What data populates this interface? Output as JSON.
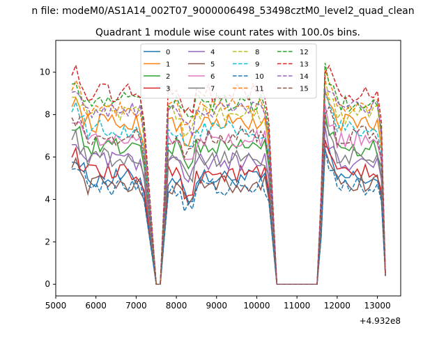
{
  "chart_data": {
    "type": "line",
    "suptitle": "n file: modeM0/AS1A14_002T07_9000006498_53498cztM0_level2_quad_clean",
    "title": "Quadrant 1 module wise count rates with 100.0s bins.",
    "xlabel": "",
    "ylabel": "",
    "x_offset_text": "+4.932e8",
    "xlim": [
      5000,
      13580
    ],
    "ylim": [
      -0.55,
      11.5
    ],
    "x_ticks": [
      5000,
      6000,
      7000,
      8000,
      9000,
      10000,
      11000,
      12000,
      13000
    ],
    "x_tick_labels": [
      "5000",
      "6000",
      "7000",
      "8000",
      "9000",
      "10000",
      "11000",
      "12000",
      "13000"
    ],
    "y_ticks": [
      0,
      2,
      4,
      6,
      8,
      10
    ],
    "y_tick_labels": [
      "0",
      "2",
      "4",
      "6",
      "8",
      "10"
    ],
    "grid": false,
    "legend": {
      "position": "top-center",
      "columns": 4
    },
    "time_profile": {
      "segments": [
        {
          "x_start": 5400,
          "x_end": 7200,
          "kind": "active"
        },
        {
          "x_start": 7200,
          "x_end": 7500,
          "kind": "fall"
        },
        {
          "x_start": 7500,
          "x_end": 7600,
          "kind": "zero"
        },
        {
          "x_start": 7600,
          "x_end": 7800,
          "kind": "rise"
        },
        {
          "x_start": 7800,
          "x_end": 10300,
          "kind": "active"
        },
        {
          "x_start": 10300,
          "x_end": 10500,
          "kind": "fall"
        },
        {
          "x_start": 10500,
          "x_end": 11500,
          "kind": "zero"
        },
        {
          "x_start": 11500,
          "x_end": 11700,
          "kind": "rise"
        },
        {
          "x_start": 11700,
          "x_end": 13100,
          "kind": "active"
        },
        {
          "x_start": 13100,
          "x_end": 13200,
          "kind": "fall"
        }
      ],
      "bin_seconds": 100
    },
    "series": [
      {
        "name": "0",
        "color": "#1f77b4",
        "dash": "solid",
        "level": 5.0
      },
      {
        "name": "1",
        "color": "#ff7f0e",
        "dash": "solid",
        "level": 7.6
      },
      {
        "name": "2",
        "color": "#2ca02c",
        "dash": "solid",
        "level": 6.5
      },
      {
        "name": "3",
        "color": "#d62728",
        "dash": "solid",
        "level": 5.2
      },
      {
        "name": "4",
        "color": "#9467bd",
        "dash": "solid",
        "level": 5.8
      },
      {
        "name": "5",
        "color": "#8c564b",
        "dash": "solid",
        "level": 4.7
      },
      {
        "name": "6",
        "color": "#e377c2",
        "dash": "solid",
        "level": 6.8
      },
      {
        "name": "7",
        "color": "#7f7f7f",
        "dash": "solid",
        "level": 6.0
      },
      {
        "name": "8",
        "color": "#bcbd22",
        "dash": "dashed",
        "level": 8.0
      },
      {
        "name": "9",
        "color": "#17becf",
        "dash": "dashed",
        "level": 7.3
      },
      {
        "name": "10",
        "color": "#1f77b4",
        "dash": "dashed",
        "level": 4.6
      },
      {
        "name": "11",
        "color": "#ff7f0e",
        "dash": "dashed",
        "level": 8.3
      },
      {
        "name": "12",
        "color": "#2ca02c",
        "dash": "dashed",
        "level": 8.6
      },
      {
        "name": "13",
        "color": "#d62728",
        "dash": "dashed",
        "level": 9.0
      },
      {
        "name": "14",
        "color": "#9467bd",
        "dash": "dashed",
        "level": 8.2
      },
      {
        "name": "15",
        "color": "#8c564b",
        "dash": "dashed",
        "level": 7.0
      }
    ]
  }
}
